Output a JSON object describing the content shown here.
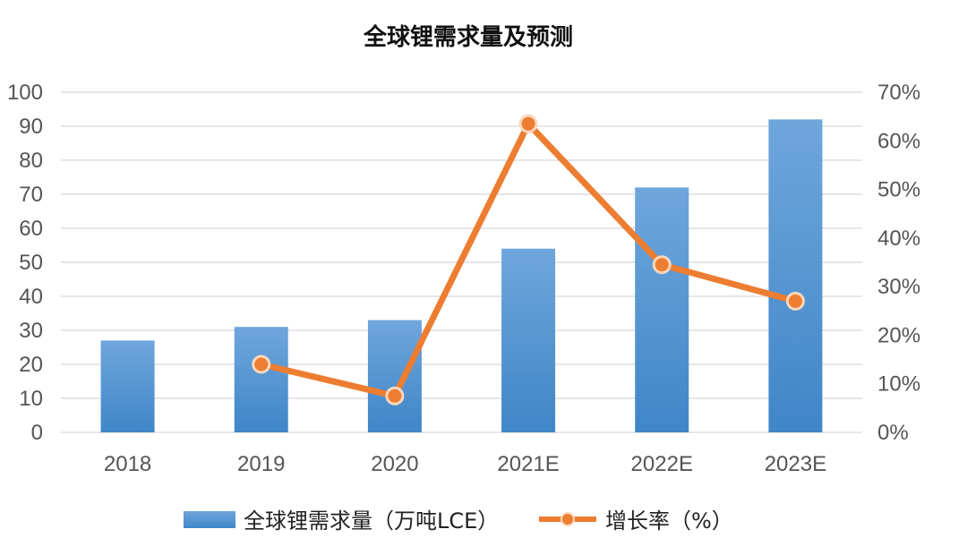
{
  "chart_data": {
    "type": "bar+line",
    "title": "全球锂需求量及预测",
    "categories": [
      "2018",
      "2019",
      "2020",
      "2021E",
      "2022E",
      "2023E"
    ],
    "series": [
      {
        "name": "全球锂需求量（万吨LCE）",
        "type": "bar",
        "axis": "left",
        "values": [
          27,
          31,
          33,
          54,
          72,
          92
        ],
        "color": "#5b9bd5"
      },
      {
        "name": "增长率（%）",
        "type": "line",
        "axis": "right",
        "values": [
          null,
          14,
          7.5,
          63.5,
          34.5,
          27
        ],
        "color": "#ed7d31"
      }
    ],
    "y_left": {
      "range": [
        0,
        100
      ],
      "ticks": [
        "0",
        "10",
        "20",
        "30",
        "40",
        "50",
        "60",
        "70",
        "80",
        "90",
        "100"
      ]
    },
    "y_right": {
      "range": [
        0,
        70
      ],
      "ticks": [
        "0%",
        "10%",
        "20%",
        "30%",
        "40%",
        "50%",
        "60%",
        "70%"
      ]
    },
    "grid": true,
    "legend_position": "bottom"
  }
}
